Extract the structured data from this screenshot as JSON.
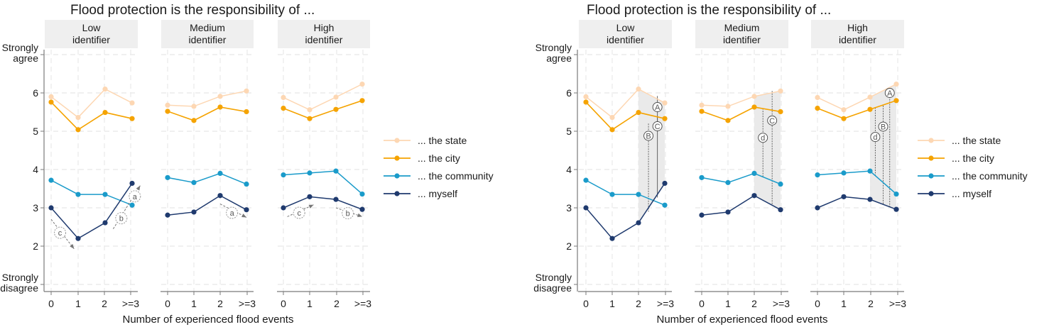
{
  "chart_data": [
    {
      "type": "line",
      "title": "Flood protection is the responsibility of ...",
      "xlabel": "Number of experienced flood events",
      "ylabel": "",
      "categories": [
        "0",
        "1",
        "2",
        ">=3"
      ],
      "ylim": [
        1,
        7
      ],
      "yticks": [
        {
          "value": 7,
          "label": [
            "Strongly",
            "agree"
          ]
        },
        {
          "value": 6,
          "label": [
            "6"
          ]
        },
        {
          "value": 5,
          "label": [
            "5"
          ]
        },
        {
          "value": 4,
          "label": [
            "4"
          ]
        },
        {
          "value": 3,
          "label": [
            "3"
          ]
        },
        {
          "value": 2,
          "label": [
            "2"
          ]
        },
        {
          "value": 1,
          "label": [
            "Strongly",
            "disagree"
          ]
        }
      ],
      "grid": true,
      "legend_position": "right",
      "panels": [
        {
          "label": [
            "Low",
            "identifier"
          ],
          "series": [
            {
              "name": "... the state",
              "values": [
                5.9,
                5.36,
                6.1,
                5.74
              ]
            },
            {
              "name": "... the city",
              "values": [
                5.76,
                5.04,
                5.49,
                5.33
              ]
            },
            {
              "name": "... the community",
              "values": [
                3.72,
                3.35,
                3.35,
                3.07
              ]
            },
            {
              "name": "... myself",
              "values": [
                3.0,
                2.2,
                2.61,
                3.64
              ]
            }
          ],
          "annotations": [
            {
              "label": "c",
              "from": [
                0,
                2.7
              ],
              "to": [
                0.85,
                1.93
              ],
              "circle_at": [
                0.33,
                2.35
              ]
            },
            {
              "label": "b",
              "from": [
                2.3,
                2.45
              ],
              "to": [
                3.3,
                3.58
              ],
              "circle_at": [
                2.6,
                2.73
              ]
            },
            {
              "label": "a",
              "from": null,
              "to": null,
              "circle_at": [
                3.1,
                3.3
              ]
            }
          ]
        },
        {
          "label": [
            "Medium",
            "identifier"
          ],
          "series": [
            {
              "name": "... the state",
              "values": [
                5.68,
                5.65,
                5.91,
                6.05
              ]
            },
            {
              "name": "... the city",
              "values": [
                5.52,
                5.28,
                5.63,
                5.51
              ]
            },
            {
              "name": "... the community",
              "values": [
                3.79,
                3.66,
                3.9,
                3.62
              ]
            },
            {
              "name": "... myself",
              "values": [
                2.81,
                2.89,
                3.32,
                2.95
              ]
            }
          ],
          "annotations": [
            {
              "label": "a",
              "from": [
                2.0,
                3.1
              ],
              "to": [
                3.0,
                2.75
              ],
              "circle_at": [
                2.45,
                2.87
              ]
            }
          ]
        },
        {
          "label": [
            "High",
            "identifier"
          ],
          "series": [
            {
              "name": "... the state",
              "values": [
                5.88,
                5.56,
                5.89,
                6.23
              ]
            },
            {
              "name": "... the city",
              "values": [
                5.6,
                5.33,
                5.57,
                5.8
              ]
            },
            {
              "name": "... the community",
              "values": [
                3.86,
                3.91,
                3.96,
                3.36
              ]
            },
            {
              "name": "... myself",
              "values": [
                3.0,
                3.29,
                3.22,
                2.96
              ]
            }
          ],
          "annotations": [
            {
              "label": "c",
              "from": [
                0.15,
                2.77
              ],
              "to": [
                1.15,
                3.08
              ],
              "circle_at": [
                0.6,
                2.87
              ]
            },
            {
              "label": "b",
              "from": [
                2.0,
                3.0
              ],
              "to": [
                3.0,
                2.77
              ],
              "circle_at": [
                2.45,
                2.86
              ]
            }
          ]
        }
      ],
      "legend": [
        {
          "name": "... the state",
          "color": "#fdd7b3"
        },
        {
          "name": "... the city",
          "color": "#f5a300"
        },
        {
          "name": "... the community",
          "color": "#1a9bca"
        },
        {
          "name": "... myself",
          "color": "#1f3a6e"
        }
      ]
    },
    {
      "type": "line",
      "title": "Flood protection is the responsibility of ...",
      "xlabel": "Number of experienced flood events",
      "ylabel": "",
      "categories": [
        "0",
        "1",
        "2",
        ">=3"
      ],
      "ylim": [
        1,
        7
      ],
      "yticks": [
        {
          "value": 7,
          "label": [
            "Strongly",
            "agree"
          ]
        },
        {
          "value": 6,
          "label": [
            "6"
          ]
        },
        {
          "value": 5,
          "label": [
            "5"
          ]
        },
        {
          "value": 4,
          "label": [
            "4"
          ]
        },
        {
          "value": 3,
          "label": [
            "3"
          ]
        },
        {
          "value": 2,
          "label": [
            "2"
          ]
        },
        {
          "value": 1,
          "label": [
            "Strongly",
            "disagree"
          ]
        }
      ],
      "grid": true,
      "legend_position": "right",
      "panels": [
        {
          "label": [
            "Low",
            "identifier"
          ],
          "series": [
            {
              "name": "... the state",
              "values": [
                5.9,
                5.36,
                6.1,
                5.74
              ]
            },
            {
              "name": "... the city",
              "values": [
                5.76,
                5.04,
                5.49,
                5.33
              ]
            },
            {
              "name": "... the community",
              "values": [
                3.72,
                3.35,
                3.35,
                3.07
              ]
            },
            {
              "name": "... myself",
              "values": [
                3.0,
                2.2,
                2.61,
                3.64
              ]
            }
          ],
          "shaded_region": {
            "from_x": 2,
            "to_x": 3
          },
          "gap_markers": [
            {
              "label": "B",
              "x": 2.38,
              "y_top": 5.2,
              "y_bottom": 2.9,
              "circle_y": 4.88,
              "style": "dotted"
            },
            {
              "label": "A",
              "x": 2.72,
              "y_top": 5.92,
              "y_bottom": 5.0,
              "circle_y": 5.63,
              "style": "solid"
            },
            {
              "label": "C",
              "x": 2.72,
              "y_top": 5.4,
              "y_bottom": 3.27,
              "circle_y": 5.13,
              "style": "solid"
            }
          ]
        },
        {
          "label": [
            "Medium",
            "identifier"
          ],
          "series": [
            {
              "name": "... the state",
              "values": [
                5.68,
                5.65,
                5.91,
                6.05
              ]
            },
            {
              "name": "... the city",
              "values": [
                5.52,
                5.28,
                5.63,
                5.51
              ]
            },
            {
              "name": "... the community",
              "values": [
                3.79,
                3.66,
                3.9,
                3.62
              ]
            },
            {
              "name": "... myself",
              "values": [
                2.81,
                2.89,
                3.32,
                2.95
              ]
            }
          ],
          "shaded_region": {
            "from_x": 2,
            "to_x": 3
          },
          "gap_markers": [
            {
              "label": "d",
              "x": 2.33,
              "y_top": 5.6,
              "y_bottom": 3.81,
              "circle_y": 4.83,
              "style": "dotted"
            },
            {
              "label": "C",
              "x": 2.68,
              "y_top": 6.05,
              "y_bottom": 3.07,
              "circle_y": 5.28,
              "style": "dotted"
            }
          ]
        },
        {
          "label": [
            "High",
            "identifier"
          ],
          "series": [
            {
              "name": "... the state",
              "values": [
                5.88,
                5.56,
                5.89,
                6.23
              ]
            },
            {
              "name": "... the city",
              "values": [
                5.6,
                5.33,
                5.57,
                5.8
              ]
            },
            {
              "name": "... the community",
              "values": [
                3.86,
                3.91,
                3.96,
                3.36
              ]
            },
            {
              "name": "... myself",
              "values": [
                3.0,
                3.29,
                3.22,
                2.96
              ]
            }
          ],
          "shaded_region": {
            "from_x": 2,
            "to_x": 3
          },
          "gap_markers": [
            {
              "label": "d",
              "x": 2.2,
              "y_top": 5.62,
              "y_bottom": 3.83,
              "circle_y": 4.85,
              "style": "dotted"
            },
            {
              "label": "B",
              "x": 2.5,
              "y_top": 5.67,
              "y_bottom": 3.08,
              "circle_y": 5.12,
              "style": "dotted"
            },
            {
              "label": "A",
              "x": 2.75,
              "y_top": 6.1,
              "y_bottom": 3.03,
              "circle_y": 6.0,
              "style": "dotted"
            }
          ]
        }
      ],
      "legend": [
        {
          "name": "... the state",
          "color": "#fdd7b3"
        },
        {
          "name": "... the city",
          "color": "#f5a300"
        },
        {
          "name": "... the community",
          "color": "#1a9bca"
        },
        {
          "name": "... myself",
          "color": "#1f3a6e"
        }
      ]
    }
  ]
}
